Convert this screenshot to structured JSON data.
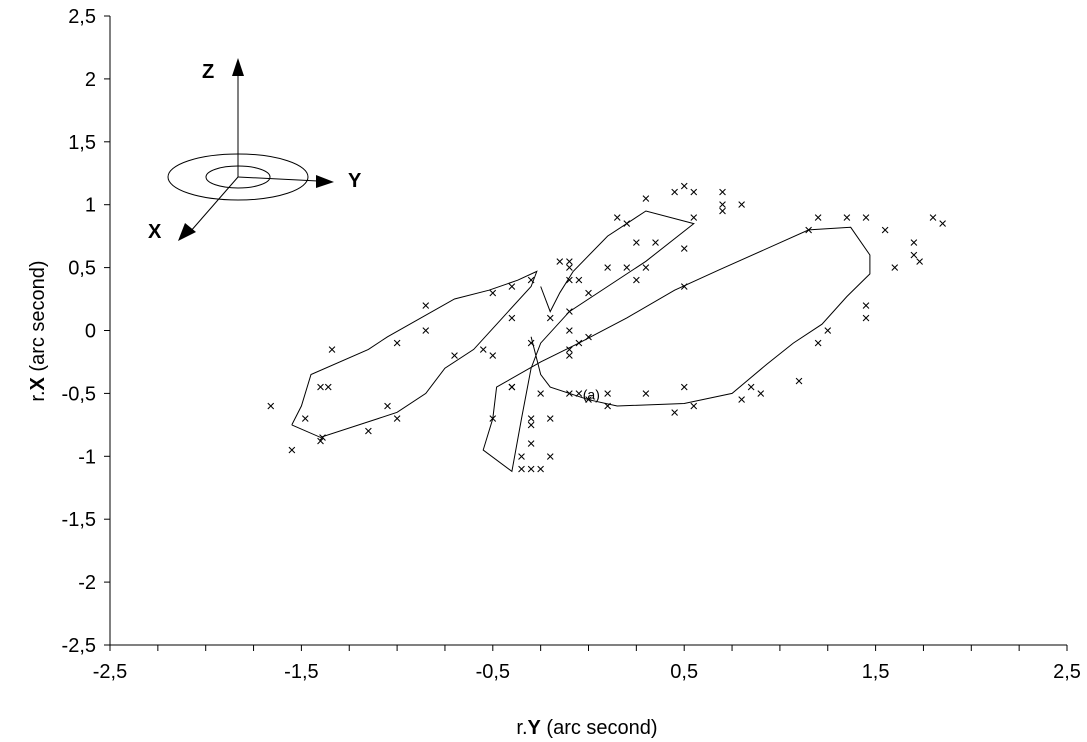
{
  "chart_data": {
    "type": "scatter",
    "title": "",
    "xlabel_prefix": "r.",
    "xlabel_bold": "Y",
    "xlabel_suffix": " (arc second)",
    "ylabel_prefix": "r.",
    "ylabel_bold": "X",
    "ylabel_suffix": " (arc second)",
    "xlim": [
      -2.5,
      2.5
    ],
    "ylim": [
      -2.5,
      2.5
    ],
    "x_ticks": [
      {
        "v": -2.5,
        "label": "-2,5"
      },
      {
        "v": -1.5,
        "label": "-1,5"
      },
      {
        "v": -0.5,
        "label": "-0,5"
      },
      {
        "v": 0.5,
        "label": "0,5"
      },
      {
        "v": 1.5,
        "label": "1,5"
      },
      {
        "v": 2.5,
        "label": "2,5"
      }
    ],
    "y_ticks": [
      {
        "v": -2.5,
        "label": "-2,5"
      },
      {
        "v": -2,
        "label": "-2"
      },
      {
        "v": -1.5,
        "label": "-1,5"
      },
      {
        "v": -1,
        "label": "-1"
      },
      {
        "v": -0.5,
        "label": "-0,5"
      },
      {
        "v": 0,
        "label": "0"
      },
      {
        "v": 0.5,
        "label": "0,5"
      },
      {
        "v": 1,
        "label": "1"
      },
      {
        "v": 1.5,
        "label": "1,5"
      },
      {
        "v": 2,
        "label": "2"
      },
      {
        "v": 2.5,
        "label": "2,5"
      }
    ],
    "x_minor_step": 0.25,
    "grid": false,
    "marker": "×",
    "annotation": {
      "text": "(a)",
      "x": -0.03,
      "y": -0.51
    },
    "axes_triad_labels": {
      "z": "Z",
      "y": "Y",
      "x": "X"
    },
    "points": [
      [
        -1.66,
        -0.6
      ],
      [
        -1.55,
        -0.95
      ],
      [
        -1.48,
        -0.7
      ],
      [
        -1.4,
        -0.45
      ],
      [
        -1.36,
        -0.45
      ],
      [
        -1.34,
        -0.15
      ],
      [
        -1.39,
        -0.85
      ],
      [
        -1.4,
        -0.88
      ],
      [
        -1.15,
        -0.8
      ],
      [
        -1.05,
        -0.6
      ],
      [
        -1.0,
        -0.7
      ],
      [
        -1.0,
        -0.1
      ],
      [
        -0.85,
        0.0
      ],
      [
        -0.85,
        0.2
      ],
      [
        -0.7,
        -0.2
      ],
      [
        -0.55,
        -0.15
      ],
      [
        -0.5,
        -0.2
      ],
      [
        -0.5,
        0.3
      ],
      [
        -0.5,
        -0.7
      ],
      [
        -0.4,
        -0.45
      ],
      [
        -0.4,
        0.1
      ],
      [
        -0.4,
        0.35
      ],
      [
        -0.3,
        0.4
      ],
      [
        -0.3,
        -0.1
      ],
      [
        -0.3,
        -0.7
      ],
      [
        -0.3,
        -0.75
      ],
      [
        -0.3,
        -0.9
      ],
      [
        -0.25,
        -0.5
      ],
      [
        -0.2,
        -0.7
      ],
      [
        -0.2,
        -1.0
      ],
      [
        -0.2,
        0.1
      ],
      [
        -0.15,
        0.55
      ],
      [
        -0.1,
        0.55
      ],
      [
        -0.1,
        0.5
      ],
      [
        -0.1,
        0.4
      ],
      [
        -0.1,
        0.15
      ],
      [
        -0.1,
        0.0
      ],
      [
        -0.1,
        -0.15
      ],
      [
        -0.1,
        -0.2
      ],
      [
        -0.05,
        0.4
      ],
      [
        0.0,
        0.3
      ],
      [
        0.0,
        -0.05
      ],
      [
        -0.05,
        -0.1
      ],
      [
        -0.1,
        -0.5
      ],
      [
        -0.05,
        -0.5
      ],
      [
        0.0,
        -0.55
      ],
      [
        0.1,
        -0.5
      ],
      [
        0.1,
        -0.6
      ],
      [
        0.1,
        0.5
      ],
      [
        0.15,
        0.9
      ],
      [
        0.2,
        0.85
      ],
      [
        0.2,
        0.5
      ],
      [
        0.25,
        0.7
      ],
      [
        0.25,
        0.4
      ],
      [
        0.3,
        0.5
      ],
      [
        0.3,
        -0.5
      ],
      [
        0.35,
        0.7
      ],
      [
        0.3,
        1.05
      ],
      [
        0.45,
        1.1
      ],
      [
        0.5,
        1.15
      ],
      [
        0.55,
        1.1
      ],
      [
        0.55,
        0.9
      ],
      [
        0.5,
        0.65
      ],
      [
        0.5,
        0.35
      ],
      [
        0.45,
        -0.65
      ],
      [
        0.5,
        -0.45
      ],
      [
        0.55,
        -0.6
      ],
      [
        0.7,
        1.1
      ],
      [
        0.7,
        1.0
      ],
      [
        0.7,
        0.95
      ],
      [
        0.8,
        1.0
      ],
      [
        0.8,
        -0.55
      ],
      [
        0.85,
        -0.45
      ],
      [
        0.9,
        -0.5
      ],
      [
        1.1,
        -0.4
      ],
      [
        1.15,
        0.8
      ],
      [
        1.2,
        0.9
      ],
      [
        1.2,
        -0.1
      ],
      [
        1.25,
        0.0
      ],
      [
        1.35,
        0.9
      ],
      [
        1.45,
        0.9
      ],
      [
        1.45,
        0.2
      ],
      [
        1.45,
        0.1
      ],
      [
        1.55,
        0.8
      ],
      [
        1.6,
        0.5
      ],
      [
        1.7,
        0.7
      ],
      [
        1.7,
        0.6
      ],
      [
        1.73,
        0.55
      ],
      [
        1.8,
        0.9
      ],
      [
        1.85,
        0.85
      ],
      [
        -0.35,
        -1.0
      ],
      [
        -0.35,
        -1.1
      ],
      [
        -0.3,
        -1.1
      ],
      [
        -0.25,
        -1.1
      ],
      [
        -0.4,
        -0.45
      ]
    ],
    "curves": [
      [
        [
          -1.55,
          -0.75
        ],
        [
          -1.5,
          -0.6
        ],
        [
          -1.45,
          -0.35
        ],
        [
          -1.15,
          -0.15
        ],
        [
          -1.05,
          -0.05
        ],
        [
          -0.7,
          0.25
        ],
        [
          -0.52,
          0.32
        ],
        [
          -0.37,
          0.4
        ],
        [
          -0.27,
          0.47
        ],
        [
          -0.3,
          0.35
        ],
        [
          -0.45,
          0.1
        ],
        [
          -0.6,
          -0.15
        ],
        [
          -0.75,
          -0.3
        ],
        [
          -0.85,
          -0.5
        ],
        [
          -1.0,
          -0.65
        ],
        [
          -1.1,
          -0.7
        ],
        [
          -1.4,
          -0.85
        ],
        [
          -1.55,
          -0.75
        ]
      ],
      [
        [
          -0.25,
          0.35
        ],
        [
          -0.2,
          0.15
        ],
        [
          -0.15,
          0.3
        ],
        [
          -0.08,
          0.47
        ],
        [
          0.1,
          0.75
        ],
        [
          0.3,
          0.95
        ],
        [
          0.55,
          0.85
        ],
        [
          0.3,
          0.55
        ],
        [
          0.1,
          0.35
        ],
        [
          -0.1,
          0.15
        ],
        [
          -0.25,
          -0.1
        ],
        [
          -0.3,
          -0.3
        ],
        [
          -0.35,
          -0.7
        ],
        [
          -0.4,
          -1.12
        ],
        [
          -0.55,
          -0.95
        ],
        [
          -0.5,
          -0.7
        ],
        [
          -0.48,
          -0.45
        ],
        [
          -0.25,
          -0.25
        ],
        [
          -0.05,
          -0.1
        ],
        [
          0.2,
          0.1
        ],
        [
          0.45,
          0.32
        ],
        [
          0.68,
          0.48
        ],
        [
          1.15,
          0.8
        ],
        [
          1.37,
          0.82
        ],
        [
          1.47,
          0.6
        ],
        [
          1.47,
          0.45
        ],
        [
          1.35,
          0.27
        ],
        [
          1.22,
          0.05
        ],
        [
          1.07,
          -0.1
        ],
        [
          0.93,
          -0.27
        ],
        [
          0.75,
          -0.5
        ],
        [
          0.5,
          -0.58
        ],
        [
          0.15,
          -0.6
        ],
        [
          0.0,
          -0.55
        ],
        [
          -0.2,
          -0.45
        ],
        [
          -0.25,
          -0.35
        ],
        [
          -0.3,
          -0.05
        ]
      ]
    ]
  }
}
